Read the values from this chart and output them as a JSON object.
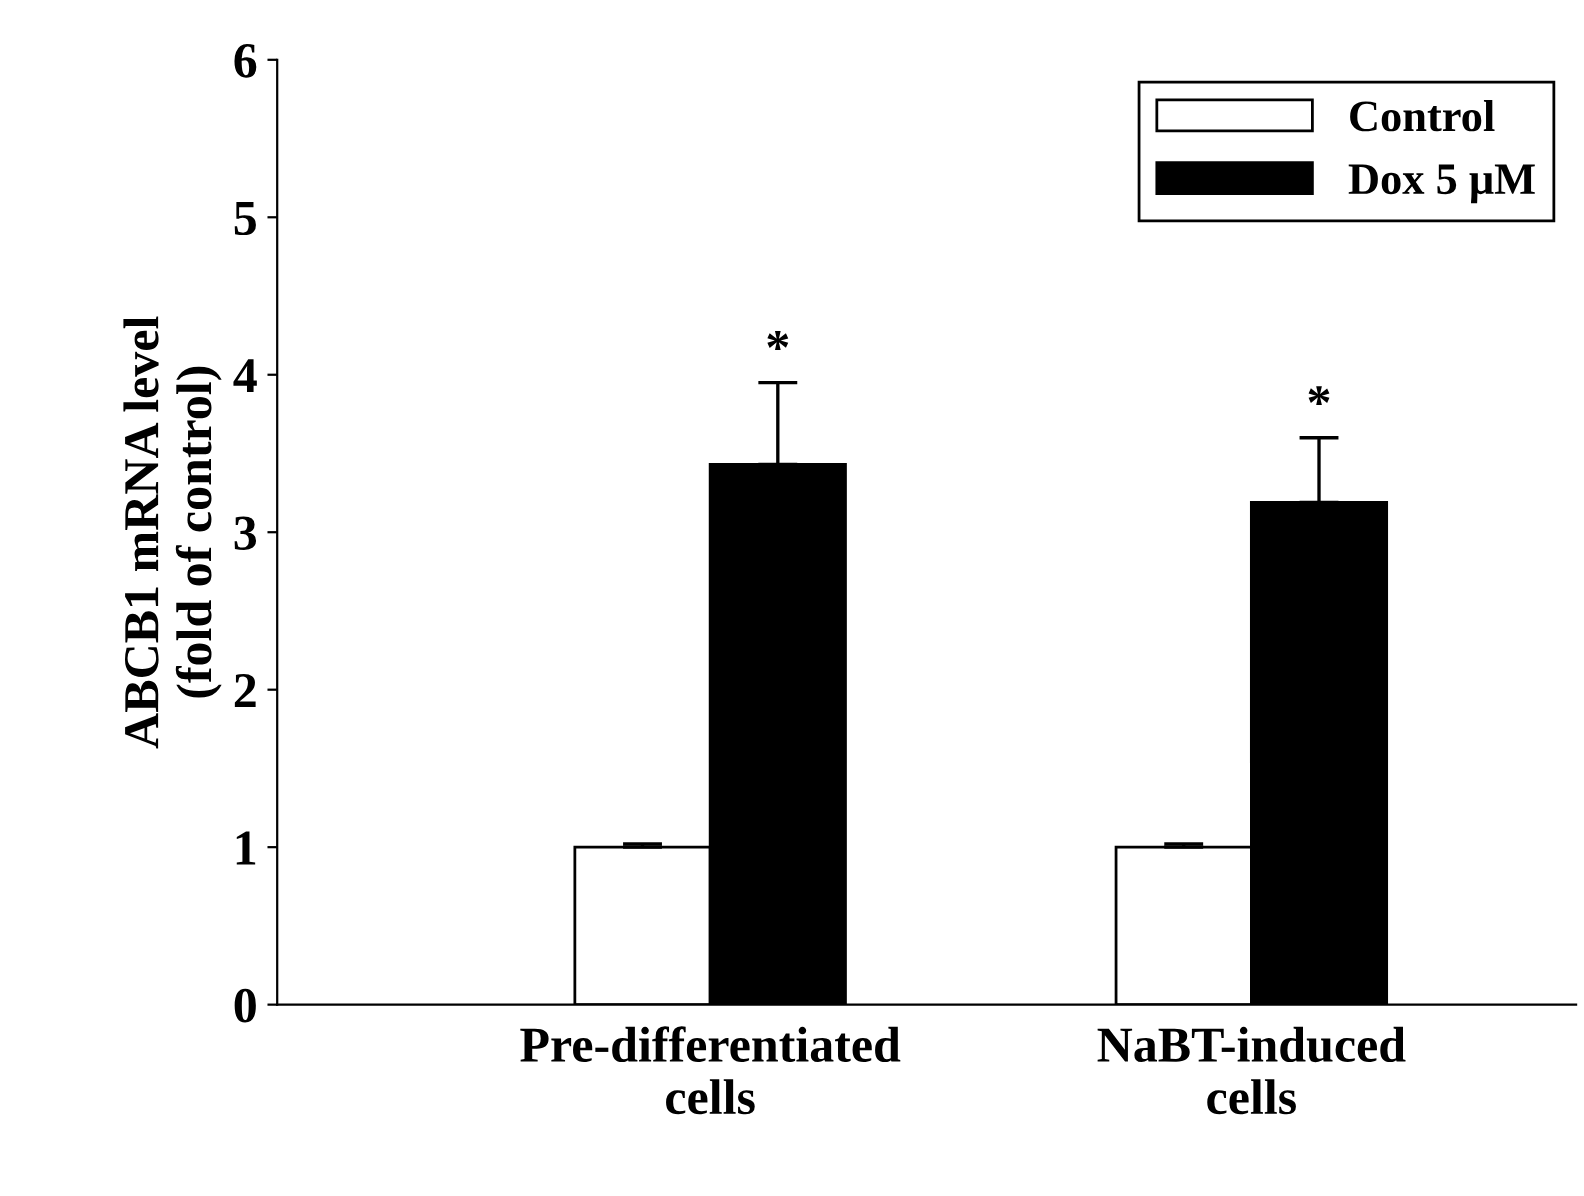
{
  "chart_data": {
    "type": "bar",
    "ylabel": "ABCB1 mRNA level\n(fold of control)",
    "categories": [
      "Pre-differentiated\ncells",
      "NaBT-induced\ncells"
    ],
    "series": [
      {
        "name": "Control",
        "color": "#ffffff",
        "values": [
          1.0,
          1.0
        ],
        "errors": [
          0.02,
          0.02
        ]
      },
      {
        "name": "Dox 5 μM",
        "color": "#000000",
        "values": [
          3.43,
          3.19
        ],
        "errors": [
          0.52,
          0.41
        ]
      }
    ],
    "ylim": [
      0,
      6
    ],
    "yticks": [
      0,
      1,
      2,
      3,
      4,
      5,
      6
    ],
    "grid": false,
    "legend": "top right",
    "annotations": [
      "*",
      "*"
    ]
  }
}
